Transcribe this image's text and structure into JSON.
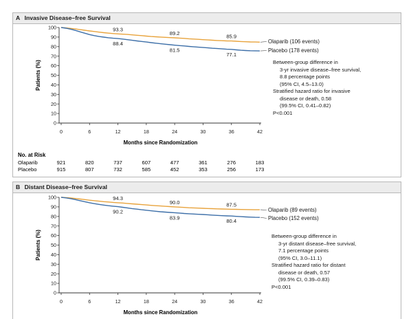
{
  "chart_data": [
    {
      "type": "line",
      "panel_letter": "A",
      "title": "Invasive Disease–free Survival",
      "xlabel": "Months since Randomization",
      "ylabel": "Patients (%)",
      "xlim": [
        0,
        42
      ],
      "ylim": [
        0,
        100
      ],
      "x_ticks": [
        0,
        6,
        12,
        18,
        24,
        30,
        36,
        42
      ],
      "y_ticks": [
        0,
        10,
        20,
        30,
        40,
        50,
        60,
        70,
        80,
        90,
        100
      ],
      "grid": false,
      "series": [
        {
          "name": "Olaparib (106 events)",
          "color": "#e8a33c",
          "points": [
            [
              0,
              100
            ],
            [
              1,
              99.6
            ],
            [
              2,
              99.1
            ],
            [
              3,
              98.5
            ],
            [
              4,
              97.8
            ],
            [
              5,
              97.1
            ],
            [
              6,
              96.4
            ],
            [
              7,
              95.8
            ],
            [
              8,
              95.2
            ],
            [
              9,
              94.6
            ],
            [
              10,
              94.1
            ],
            [
              11,
              93.7
            ],
            [
              12,
              93.3
            ],
            [
              13,
              93.0
            ],
            [
              14,
              92.7
            ],
            [
              15,
              92.3
            ],
            [
              16,
              91.9
            ],
            [
              17,
              91.5
            ],
            [
              18,
              91.0
            ],
            [
              19,
              90.6
            ],
            [
              20,
              90.3
            ],
            [
              21,
              90.0
            ],
            [
              22,
              89.7
            ],
            [
              23,
              89.4
            ],
            [
              24,
              89.2
            ],
            [
              25,
              88.9
            ],
            [
              26,
              88.6
            ],
            [
              27,
              88.2
            ],
            [
              28,
              87.9
            ],
            [
              29,
              87.6
            ],
            [
              30,
              87.3
            ],
            [
              31,
              87.0
            ],
            [
              32,
              86.7
            ],
            [
              33,
              86.4
            ],
            [
              34,
              86.2
            ],
            [
              35,
              86.0
            ],
            [
              36,
              85.9
            ],
            [
              37,
              85.6
            ],
            [
              38,
              85.3
            ],
            [
              39,
              85.1
            ],
            [
              40,
              84.9
            ],
            [
              41,
              84.8
            ],
            [
              42,
              84.7
            ]
          ]
        },
        {
          "name": "Placebo (178 events)",
          "color": "#3d6fa8",
          "points": [
            [
              0,
              100
            ],
            [
              1,
              99.3
            ],
            [
              2,
              98.3
            ],
            [
              3,
              97.0
            ],
            [
              4,
              95.5
            ],
            [
              5,
              94.0
            ],
            [
              6,
              92.6
            ],
            [
              7,
              91.5
            ],
            [
              8,
              90.6
            ],
            [
              9,
              89.9
            ],
            [
              10,
              89.3
            ],
            [
              11,
              88.8
            ],
            [
              12,
              88.4
            ],
            [
              13,
              87.9
            ],
            [
              14,
              87.3
            ],
            [
              15,
              86.6
            ],
            [
              16,
              86.0
            ],
            [
              17,
              85.4
            ],
            [
              18,
              84.8
            ],
            [
              19,
              84.2
            ],
            [
              20,
              83.6
            ],
            [
              21,
              83.0
            ],
            [
              22,
              82.5
            ],
            [
              23,
              82.0
            ],
            [
              24,
              81.5
            ],
            [
              25,
              81.1
            ],
            [
              26,
              80.7
            ],
            [
              27,
              80.2
            ],
            [
              28,
              79.8
            ],
            [
              29,
              79.4
            ],
            [
              30,
              79.1
            ],
            [
              31,
              78.7
            ],
            [
              32,
              78.3
            ],
            [
              33,
              78.0
            ],
            [
              34,
              77.6
            ],
            [
              35,
              77.3
            ],
            [
              36,
              77.1
            ],
            [
              37,
              76.6
            ],
            [
              38,
              76.2
            ],
            [
              39,
              75.9
            ],
            [
              40,
              75.7
            ],
            [
              41,
              75.6
            ],
            [
              42,
              75.5
            ]
          ]
        }
      ],
      "annotations": [
        {
          "x": 12,
          "y": 93.3,
          "label": "93.3",
          "series": 0
        },
        {
          "x": 24,
          "y": 89.2,
          "label": "89.2",
          "series": 0
        },
        {
          "x": 36,
          "y": 85.9,
          "label": "85.9",
          "series": 0
        },
        {
          "x": 12,
          "y": 88.4,
          "label": "88.4",
          "series": 1
        },
        {
          "x": 24,
          "y": 81.5,
          "label": "81.5",
          "series": 1
        },
        {
          "x": 36,
          "y": 77.1,
          "label": "77.1",
          "series": 1
        }
      ],
      "stats": [
        {
          "text": "Between-group difference in",
          "indent": false
        },
        {
          "text": "3-yr invasive disease–free survival,",
          "indent": true
        },
        {
          "text": "8.8 percentage points",
          "indent": true
        },
        {
          "text": "(95% CI, 4.5–13.0)",
          "indent": true
        },
        {
          "text": "Stratified hazard ratio for invasive",
          "indent": false
        },
        {
          "text": "disease or death, 0.58",
          "indent": true
        },
        {
          "text": "(99.5% CI, 0.41–0.82)",
          "indent": true
        },
        {
          "text": "P<0.001",
          "indent": false
        }
      ],
      "at_risk": {
        "title": "No. at Risk",
        "times": [
          0,
          6,
          12,
          18,
          24,
          30,
          36,
          42
        ],
        "rows": [
          {
            "label": "Olaparib",
            "values": [
              "921",
              "820",
              "737",
              "607",
              "477",
              "361",
              "276",
              "183"
            ]
          },
          {
            "label": "Placebo",
            "values": [
              "915",
              "807",
              "732",
              "585",
              "452",
              "353",
              "256",
              "173"
            ]
          }
        ]
      }
    },
    {
      "type": "line",
      "panel_letter": "B",
      "title": "Distant Disease–free Survival",
      "xlabel": "Months since Randomization",
      "ylabel": "Patients (%)",
      "xlim": [
        0,
        42
      ],
      "ylim": [
        0,
        100
      ],
      "x_ticks": [
        0,
        6,
        12,
        18,
        24,
        30,
        36,
        42
      ],
      "y_ticks": [
        0,
        10,
        20,
        30,
        40,
        50,
        60,
        70,
        80,
        90,
        100
      ],
      "grid": false,
      "series": [
        {
          "name": "Olaparib (89 events)",
          "color": "#e8a33c",
          "points": [
            [
              0,
              100
            ],
            [
              1,
              99.7
            ],
            [
              2,
              99.3
            ],
            [
              3,
              98.8
            ],
            [
              4,
              98.2
            ],
            [
              5,
              97.6
            ],
            [
              6,
              97.0
            ],
            [
              7,
              96.5
            ],
            [
              8,
              96.0
            ],
            [
              9,
              95.5
            ],
            [
              10,
              95.1
            ],
            [
              11,
              94.7
            ],
            [
              12,
              94.3
            ],
            [
              13,
              94.0
            ],
            [
              14,
              93.6
            ],
            [
              15,
              93.2
            ],
            [
              16,
              92.8
            ],
            [
              17,
              92.4
            ],
            [
              18,
              92.0
            ],
            [
              19,
              91.6
            ],
            [
              20,
              91.2
            ],
            [
              21,
              90.9
            ],
            [
              22,
              90.6
            ],
            [
              23,
              90.3
            ],
            [
              24,
              90.0
            ],
            [
              25,
              89.7
            ],
            [
              26,
              89.4
            ],
            [
              27,
              89.1
            ],
            [
              28,
              88.9
            ],
            [
              29,
              88.7
            ],
            [
              30,
              88.5
            ],
            [
              31,
              88.3
            ],
            [
              32,
              88.1
            ],
            [
              33,
              87.9
            ],
            [
              34,
              87.8
            ],
            [
              35,
              87.6
            ],
            [
              36,
              87.5
            ],
            [
              37,
              87.4
            ],
            [
              38,
              87.3
            ],
            [
              39,
              87.2
            ],
            [
              40,
              87.1
            ],
            [
              41,
              87.0
            ],
            [
              42,
              87.0
            ]
          ]
        },
        {
          "name": "Placebo (152 events)",
          "color": "#3d6fa8",
          "points": [
            [
              0,
              100
            ],
            [
              1,
              99.4
            ],
            [
              2,
              98.6
            ],
            [
              3,
              97.6
            ],
            [
              4,
              96.5
            ],
            [
              5,
              95.4
            ],
            [
              6,
              94.3
            ],
            [
              7,
              93.4
            ],
            [
              8,
              92.6
            ],
            [
              9,
              91.9
            ],
            [
              10,
              91.2
            ],
            [
              11,
              90.7
            ],
            [
              12,
              90.2
            ],
            [
              13,
              89.6
            ],
            [
              14,
              88.9
            ],
            [
              15,
              88.2
            ],
            [
              16,
              87.6
            ],
            [
              17,
              87.0
            ],
            [
              18,
              86.5
            ],
            [
              19,
              85.9
            ],
            [
              20,
              85.4
            ],
            [
              21,
              84.9
            ],
            [
              22,
              84.5
            ],
            [
              23,
              84.2
            ],
            [
              24,
              83.9
            ],
            [
              25,
              83.5
            ],
            [
              26,
              83.1
            ],
            [
              27,
              82.8
            ],
            [
              28,
              82.5
            ],
            [
              29,
              82.2
            ],
            [
              30,
              82.0
            ],
            [
              31,
              81.7
            ],
            [
              32,
              81.4
            ],
            [
              33,
              81.1
            ],
            [
              34,
              80.8
            ],
            [
              35,
              80.6
            ],
            [
              36,
              80.4
            ],
            [
              37,
              80.1
            ],
            [
              38,
              79.8
            ],
            [
              39,
              79.5
            ],
            [
              40,
              79.3
            ],
            [
              41,
              79.1
            ],
            [
              42,
              79.0
            ]
          ]
        }
      ],
      "annotations": [
        {
          "x": 12,
          "y": 94.3,
          "label": "94.3",
          "series": 0
        },
        {
          "x": 24,
          "y": 90.0,
          "label": "90.0",
          "series": 0
        },
        {
          "x": 36,
          "y": 87.5,
          "label": "87.5",
          "series": 0
        },
        {
          "x": 12,
          "y": 90.2,
          "label": "90.2",
          "series": 1
        },
        {
          "x": 24,
          "y": 83.9,
          "label": "83.9",
          "series": 1
        },
        {
          "x": 36,
          "y": 80.4,
          "label": "80.4",
          "series": 1
        }
      ],
      "stats": [
        {
          "text": "Between-group difference in",
          "indent": false
        },
        {
          "text": "3-yr distant disease–free survival,",
          "indent": true
        },
        {
          "text": "7.1 percentage points",
          "indent": true
        },
        {
          "text": "(95% CI, 3.0–11.1)",
          "indent": true
        },
        {
          "text": "Stratified hazard ratio for distant",
          "indent": false
        },
        {
          "text": "disease or death, 0.57",
          "indent": true
        },
        {
          "text": "(99.5% CI, 0.39–0.83)",
          "indent": true
        },
        {
          "text": "P<0.001",
          "indent": false
        }
      ]
    }
  ]
}
